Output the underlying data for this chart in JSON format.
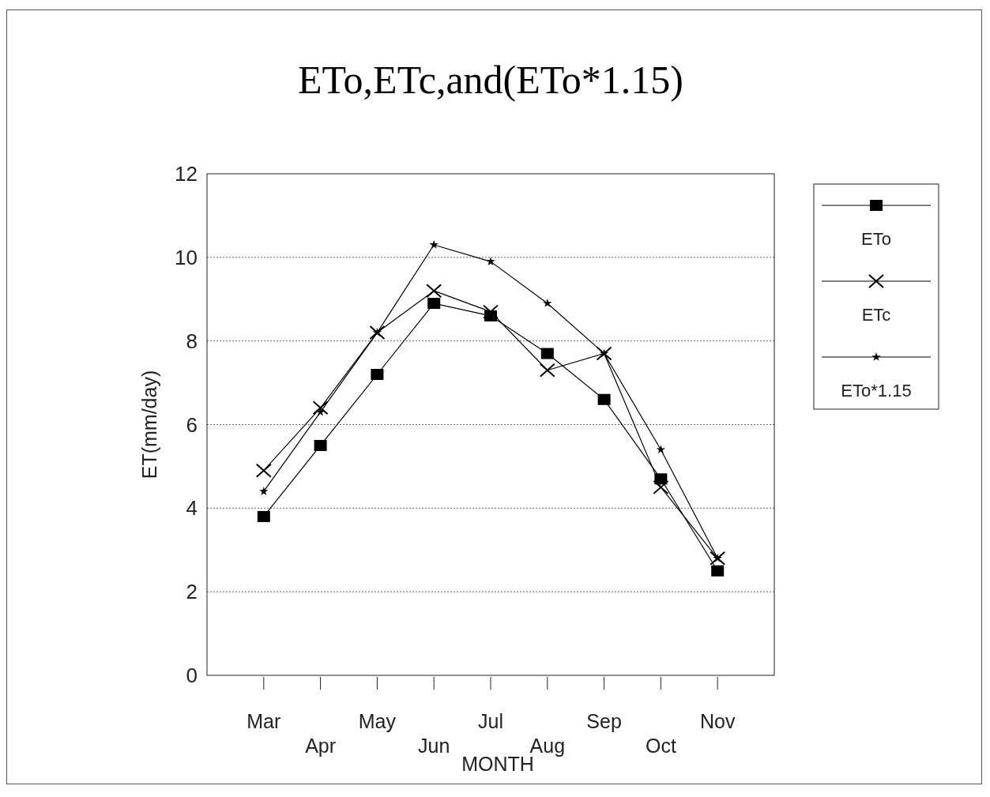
{
  "chart_data": {
    "type": "line",
    "title": "ETo,ETc,and(ETo*1.15)",
    "xlabel": "MONTH",
    "ylabel": "ET(mm/day)",
    "categories": [
      "Mar",
      "Apr",
      "May",
      "Jun",
      "Jul",
      "Aug",
      "Sep",
      "Oct",
      "Nov"
    ],
    "series": [
      {
        "name": "ETo",
        "color": "#000000",
        "marker": "square",
        "values": [
          3.8,
          5.5,
          7.2,
          8.9,
          8.6,
          7.7,
          6.6,
          4.7,
          2.5
        ]
      },
      {
        "name": "ETc",
        "color": "#000000",
        "marker": "cross",
        "values": [
          4.9,
          6.4,
          8.2,
          9.2,
          8.7,
          7.3,
          7.7,
          4.5,
          2.8
        ]
      },
      {
        "name": "ETo*1.15",
        "color": "#000000",
        "marker": "star",
        "values": [
          4.4,
          6.3,
          8.2,
          10.3,
          9.9,
          8.9,
          7.7,
          5.4,
          2.8
        ]
      }
    ],
    "ylim": [
      0,
      12
    ],
    "yticks": [
      0,
      2,
      4,
      6,
      8,
      10,
      12
    ],
    "grid": "y",
    "legend": "right"
  }
}
